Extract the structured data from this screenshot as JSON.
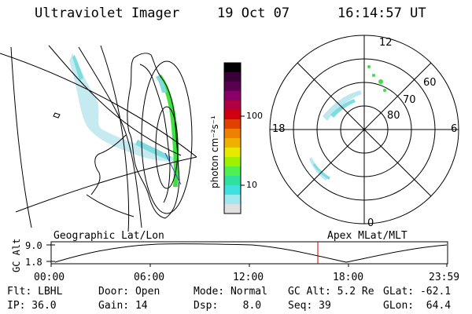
{
  "header": {
    "title": "Ultraviolet Imager",
    "date": "19 Oct 07",
    "time": "16:14:57 UT"
  },
  "colorbar": {
    "label": "photon cm⁻²s⁻¹",
    "ticks": [
      "100",
      "10"
    ],
    "colors": [
      "#000000",
      "#3a003a",
      "#5a0050",
      "#8a006a",
      "#b00040",
      "#d00010",
      "#e04000",
      "#f08000",
      "#f0b000",
      "#e8e800",
      "#a0f000",
      "#50f050",
      "#30e0a0",
      "#40e0e0",
      "#a0e8f0",
      "#e0e0e0"
    ]
  },
  "polar": {
    "labels": {
      "top": "12",
      "left": "18",
      "right": "6",
      "bottom": "0",
      "lat60": "60",
      "lat70": "70",
      "lat80": "80"
    }
  },
  "timeline": {
    "left_title": "Geographic Lat/Lon",
    "right_title": "Apex MLat/MLT",
    "axis_label": "GC Alt",
    "y_top": "9.0",
    "y_bottom": "1.8",
    "x_ticks": [
      "00:00",
      "06:00",
      "12:00",
      "18:00",
      "23:59"
    ]
  },
  "info": {
    "row1": {
      "flt": "Flt: LBHL",
      "door": "Door: Open",
      "mode": "Mode: Normal",
      "gcalt": "GC Alt: 5.2 Re",
      "glat": "GLat: -62.1"
    },
    "row2": {
      "ip": "IP: 36.0",
      "gain": "Gain: 14",
      "dsp": "Dsp:    8.0",
      "seq": "Seq: 39",
      "glon": "GLon:  64.4"
    }
  },
  "colors": {
    "marker": "#cc0000",
    "aurora_dim": "#bfe8ee",
    "aurora_mid": "#7fdcdc",
    "aurora_bright": "#40e040"
  }
}
